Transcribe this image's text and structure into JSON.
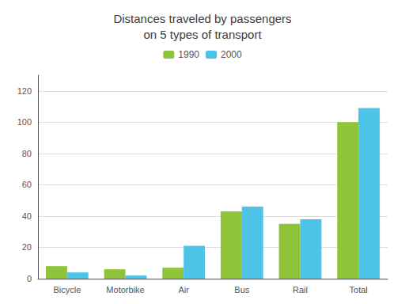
{
  "chart_data": {
    "type": "bar",
    "title": "Distances traveled by passengers\non 5 types of transport",
    "categories": [
      "Bicycle",
      "Motorbike",
      "Air",
      "Bus",
      "Rail",
      "Total"
    ],
    "series": [
      {
        "name": "1990",
        "color": "#8fc43a",
        "values": [
          8,
          6,
          7,
          43,
          35,
          100
        ]
      },
      {
        "name": "2000",
        "color": "#4dc3e8",
        "values": [
          4,
          2,
          21,
          46,
          38,
          109
        ]
      }
    ],
    "ylim": [
      0,
      130
    ],
    "yticks": [
      0,
      20,
      40,
      60,
      80,
      100,
      120
    ],
    "grid": true,
    "legend": "top"
  }
}
